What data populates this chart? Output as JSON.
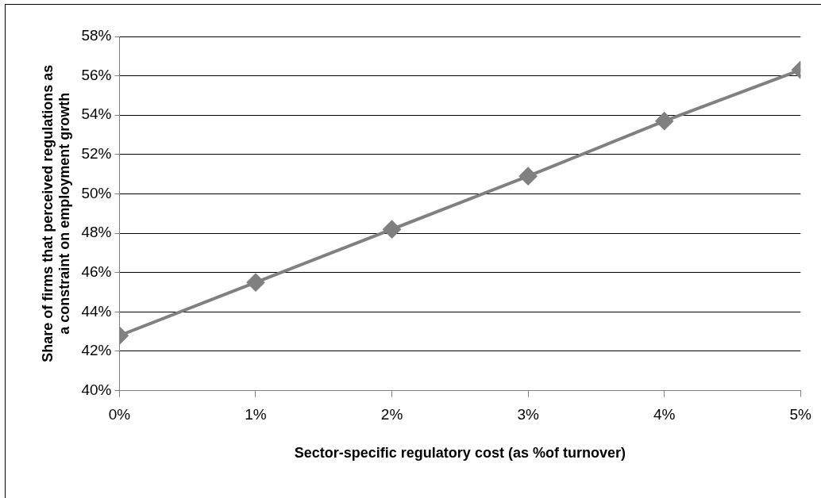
{
  "chart_data": {
    "type": "line",
    "xlabel": "Sector-specific regulatory cost (as %of turnover)",
    "ylabel": "Share of firms that perceived regulations as a constraint on employment growth",
    "x": [
      0,
      1,
      2,
      3,
      4,
      5
    ],
    "series": [
      {
        "color": "#808080",
        "values": [
          42.8,
          45.5,
          48.2,
          50.9,
          53.7,
          56.3
        ]
      }
    ],
    "xlim": [
      0,
      5
    ],
    "xticks": [
      {
        "value": 0,
        "label": "0%"
      },
      {
        "value": 1,
        "label": "1%"
      },
      {
        "value": 2,
        "label": "2%"
      },
      {
        "value": 3,
        "label": "3%"
      },
      {
        "value": 4,
        "label": "4%"
      },
      {
        "value": 5,
        "label": "5%"
      }
    ],
    "ylim": [
      40,
      58
    ],
    "yticks": [
      {
        "value": 40,
        "label": "40%"
      },
      {
        "value": 42,
        "label": "42%"
      },
      {
        "value": 44,
        "label": "44%"
      },
      {
        "value": 46,
        "label": "46%"
      },
      {
        "value": 48,
        "label": "48%"
      },
      {
        "value": 50,
        "label": "50%"
      },
      {
        "value": 52,
        "label": "52%"
      },
      {
        "value": 54,
        "label": "54%"
      },
      {
        "value": 56,
        "label": "56%"
      },
      {
        "value": 58,
        "label": "58%"
      }
    ],
    "grid": "y",
    "legend": false,
    "marker": "diamond",
    "line_style": "solid"
  }
}
